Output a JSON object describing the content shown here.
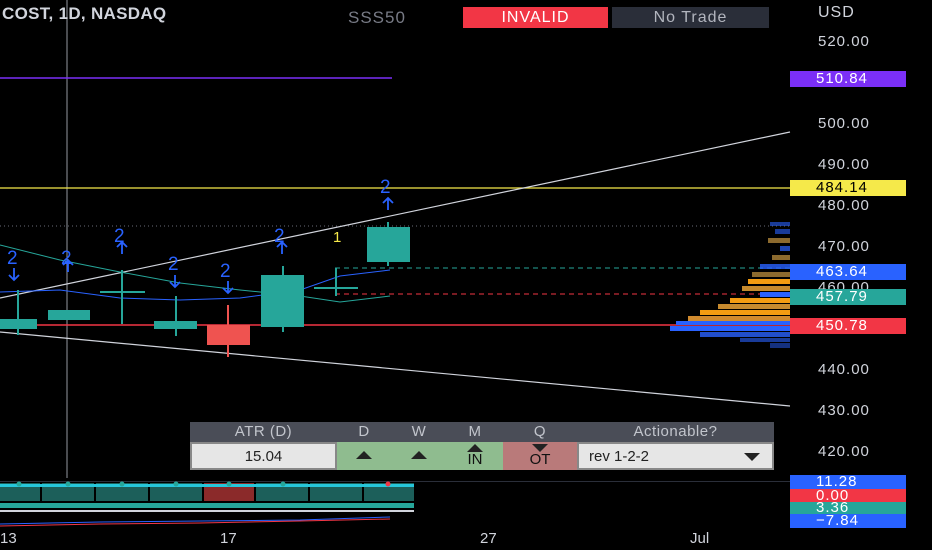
{
  "header": {
    "symbol_line": "COST, 1D, NASDAQ",
    "strategy_label": "SSS50",
    "status_badge": "INVALID",
    "trade_badge": "No Trade"
  },
  "price_axis": {
    "currency": "USD",
    "ticks": [
      "520.00",
      "500.00",
      "490.00",
      "480.00",
      "470.00",
      "460.00",
      "440.00",
      "430.00",
      "420.00"
    ]
  },
  "price_labels": [
    {
      "value": "510.84",
      "color": "#7b2ff7"
    },
    {
      "value": "484.14",
      "color": "#f5e94a"
    },
    {
      "value": "463.64",
      "color": "#2962ff"
    },
    {
      "value": "457.79",
      "color": "#26a69a"
    },
    {
      "value": "450.78",
      "color": "#f23645"
    }
  ],
  "indicator_labels": [
    {
      "value": "11.28",
      "color": "#2962ff"
    },
    {
      "value": "0.00",
      "color": "#f23645"
    },
    {
      "value": "3.36",
      "color": "#26a69a"
    },
    {
      "value": "−7.84",
      "color": "#2962ff"
    }
  ],
  "time_axis": {
    "ticks": [
      "13",
      "17",
      "27",
      "Jul"
    ]
  },
  "bar_markers": [
    "2",
    "2",
    "2",
    "2",
    "2",
    "2",
    "2",
    "1"
  ],
  "table": {
    "headers": [
      "ATR (D)",
      "D",
      "W",
      "M",
      "Q",
      "Actionable?"
    ],
    "atr_value": "15.04",
    "m_text": "IN",
    "q_text": "OT",
    "actionable_value": "rev 1-2-2"
  },
  "colors": {
    "up_candle": "#26a69a",
    "down_candle": "#ef5350",
    "marker": "#2962ff",
    "background": "#000000"
  }
}
